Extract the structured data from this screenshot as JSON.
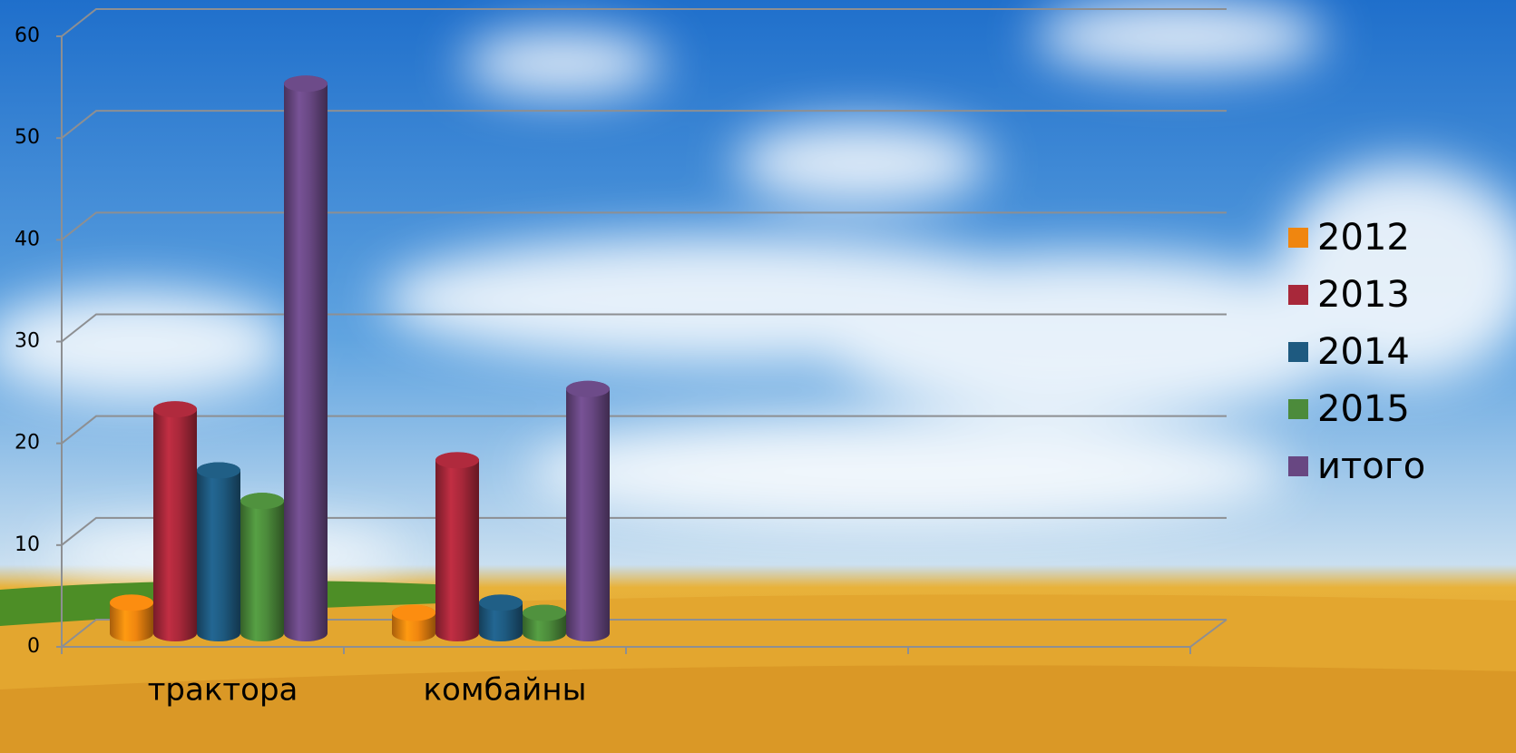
{
  "chart_data": {
    "type": "bar",
    "categories": [
      "трактора",
      "комбайны",
      null,
      null
    ],
    "series": [
      {
        "name": "2012",
        "color": "#f0860f",
        "values": [
          3,
          2,
          null,
          null
        ]
      },
      {
        "name": "2013",
        "color": "#a8283a",
        "values": [
          22,
          17,
          null,
          null
        ]
      },
      {
        "name": "2014",
        "color": "#1e5a80",
        "values": [
          16,
          3,
          null,
          null
        ]
      },
      {
        "name": "2015",
        "color": "#4c8b3b",
        "values": [
          13,
          2,
          null,
          null
        ]
      },
      {
        "name": "итого",
        "color": "#684782",
        "values": [
          54,
          24,
          null,
          null
        ]
      }
    ],
    "ylim": [
      0,
      60
    ],
    "yticks": [
      0,
      10,
      20,
      30,
      40,
      50,
      60
    ],
    "grid": true,
    "legend": "right"
  }
}
